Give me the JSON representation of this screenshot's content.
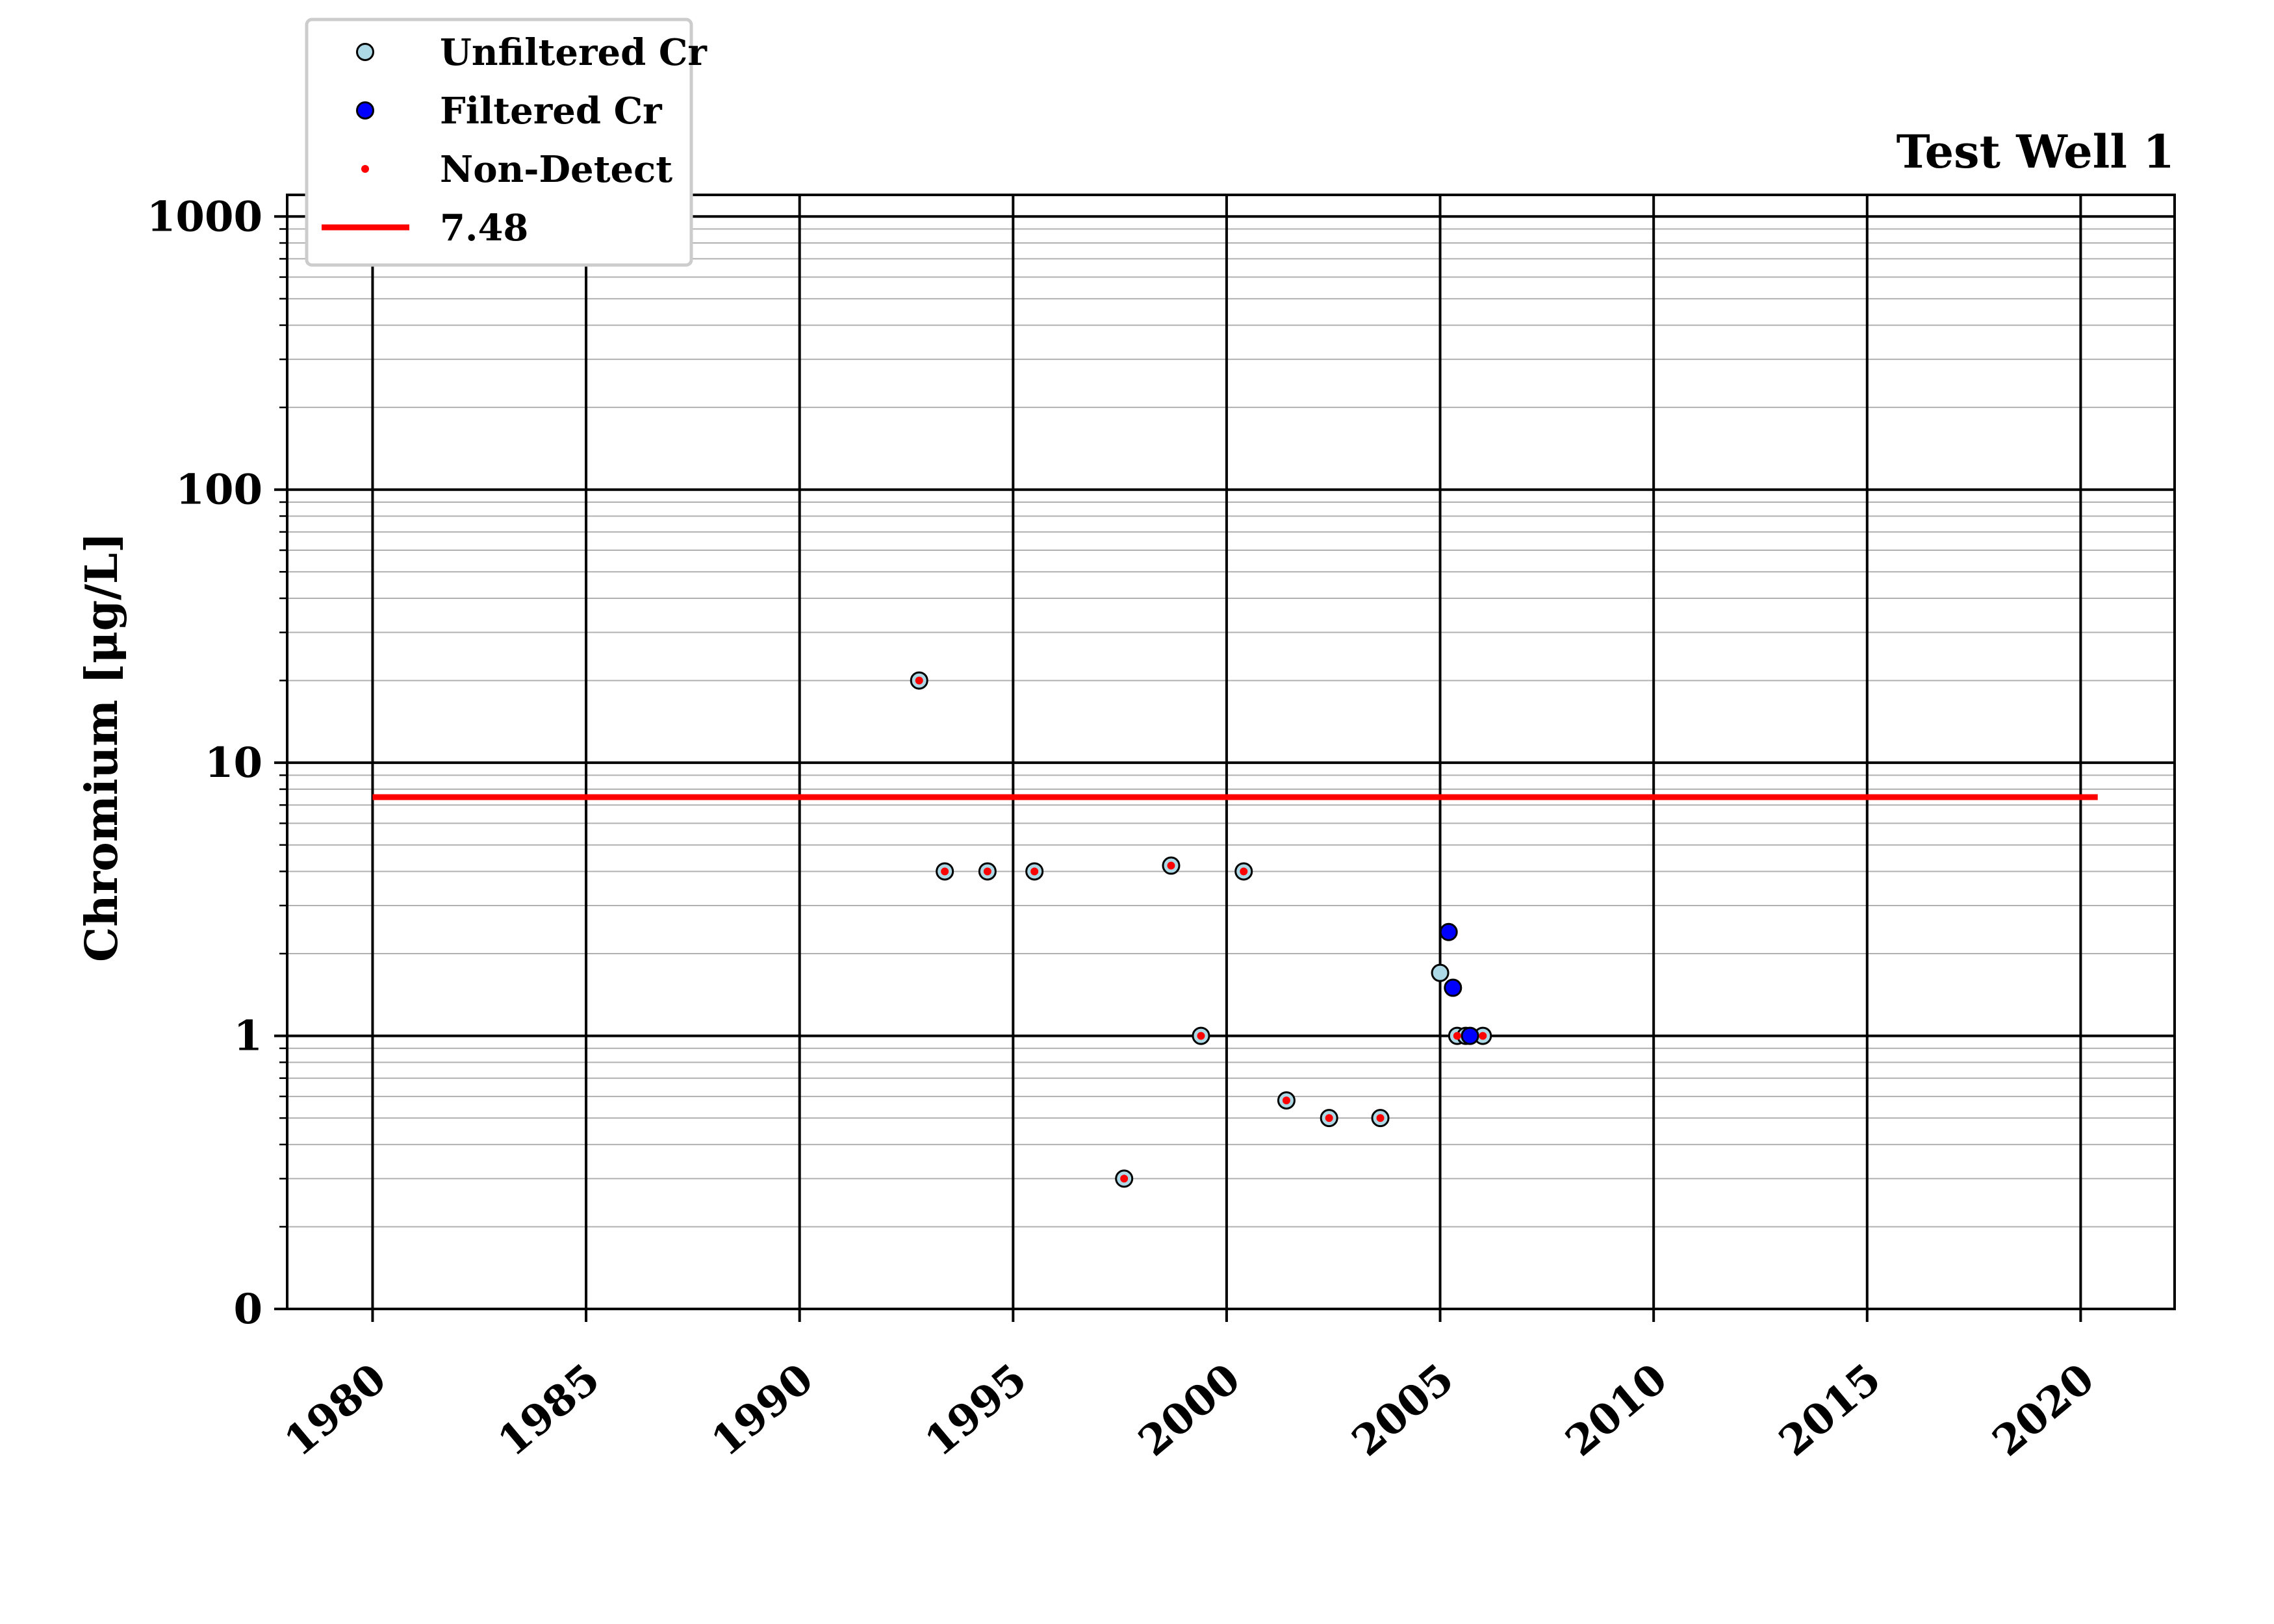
{
  "chart_data": {
    "type": "scatter",
    "title": "Test Well 1",
    "xlabel": "",
    "ylabel": "Chromium [μg/L]",
    "x_scale": "date",
    "y_scale": "log",
    "xlim": [
      1978,
      2022.2
    ],
    "ylim": [
      0.1,
      1200
    ],
    "grid": true,
    "legend_position": "top-left",
    "x_ticks": [
      "1980",
      "1985",
      "1990",
      "1995",
      "2000",
      "2005",
      "2010",
      "2015",
      "2020"
    ],
    "y_ticks": [
      {
        "value": 0.1,
        "label": "0"
      },
      {
        "value": 1,
        "label": "1"
      },
      {
        "value": 10,
        "label": "10"
      },
      {
        "value": 100,
        "label": "100"
      },
      {
        "value": 1000,
        "label": "1000"
      }
    ],
    "series": [
      {
        "name": "Unfiltered Cr",
        "marker": "circle",
        "color": "#add8e6",
        "edge": "#000000",
        "points": [
          {
            "x": 1992.8,
            "y": 20
          },
          {
            "x": 1993.4,
            "y": 4
          },
          {
            "x": 1994.4,
            "y": 4
          },
          {
            "x": 1995.5,
            "y": 4
          },
          {
            "x": 1997.6,
            "y": 0.3
          },
          {
            "x": 1998.7,
            "y": 4.2
          },
          {
            "x": 1999.4,
            "y": 1
          },
          {
            "x": 2000.4,
            "y": 4
          },
          {
            "x": 2001.4,
            "y": 0.58
          },
          {
            "x": 2002.4,
            "y": 0.5
          },
          {
            "x": 2003.6,
            "y": 0.5
          },
          {
            "x": 2005.0,
            "y": 1.7
          },
          {
            "x": 2005.4,
            "y": 1
          },
          {
            "x": 2005.6,
            "y": 1
          },
          {
            "x": 2006.0,
            "y": 1
          }
        ]
      },
      {
        "name": "Filtered Cr",
        "marker": "circle",
        "color": "#0000ff",
        "edge": "#000000",
        "points": [
          {
            "x": 2005.2,
            "y": 2.4
          },
          {
            "x": 2005.3,
            "y": 1.5
          },
          {
            "x": 2005.7,
            "y": 1
          }
        ]
      },
      {
        "name": "Non-Detect",
        "marker": "dot",
        "color": "#ff0000",
        "points": [
          {
            "x": 1992.8,
            "y": 20
          },
          {
            "x": 1993.4,
            "y": 4
          },
          {
            "x": 1994.4,
            "y": 4
          },
          {
            "x": 1995.5,
            "y": 4
          },
          {
            "x": 1997.6,
            "y": 0.3
          },
          {
            "x": 1998.7,
            "y": 4.2
          },
          {
            "x": 1999.4,
            "y": 1
          },
          {
            "x": 2000.4,
            "y": 4
          },
          {
            "x": 2001.4,
            "y": 0.58
          },
          {
            "x": 2002.4,
            "y": 0.5
          },
          {
            "x": 2003.6,
            "y": 0.5
          },
          {
            "x": 2005.4,
            "y": 1
          },
          {
            "x": 2006.0,
            "y": 1
          }
        ]
      }
    ],
    "reference_lines": [
      {
        "name": "7.48",
        "value": 7.48,
        "x_range": [
          1980,
          2020.4
        ],
        "color": "#ff0000"
      }
    ]
  }
}
